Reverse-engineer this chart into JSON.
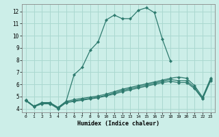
{
  "xlabel": "Humidex (Indice chaleur)",
  "bg_color": "#cceee8",
  "grid_color": "#aad8d0",
  "line_color": "#2d7a6e",
  "xlim": [
    -0.5,
    23.5
  ],
  "ylim": [
    3.7,
    12.6
  ],
  "xticks": [
    0,
    1,
    2,
    3,
    4,
    5,
    6,
    7,
    8,
    9,
    10,
    11,
    12,
    13,
    14,
    15,
    16,
    17,
    18,
    19,
    20,
    21,
    22,
    23
  ],
  "yticks": [
    4,
    5,
    6,
    7,
    8,
    9,
    10,
    11,
    12
  ],
  "lines": [
    {
      "x": [
        0,
        1,
        2,
        3,
        4,
        5,
        6,
        7,
        8,
        9,
        10,
        11,
        12,
        13,
        14,
        15,
        16,
        17,
        18
      ],
      "y": [
        4.7,
        4.2,
        4.5,
        4.5,
        4.1,
        4.6,
        6.8,
        7.4,
        8.8,
        9.5,
        11.3,
        11.7,
        11.4,
        11.4,
        12.1,
        12.3,
        11.9,
        9.7,
        7.9
      ]
    },
    {
      "x": [
        0,
        1,
        2,
        3,
        4,
        5,
        6,
        7,
        8,
        9,
        10,
        11,
        12,
        13,
        14,
        15,
        16,
        17,
        18,
        19,
        20,
        21,
        22,
        23
      ],
      "y": [
        4.7,
        4.2,
        4.5,
        4.5,
        4.1,
        4.6,
        4.75,
        4.85,
        4.95,
        5.05,
        5.2,
        5.4,
        5.6,
        5.75,
        5.9,
        6.05,
        6.2,
        6.35,
        6.5,
        6.6,
        6.5,
        5.9,
        4.95,
        6.5
      ]
    },
    {
      "x": [
        0,
        1,
        2,
        3,
        4,
        5,
        6,
        7,
        8,
        9,
        10,
        11,
        12,
        13,
        14,
        15,
        16,
        17,
        18,
        19,
        20,
        21,
        22,
        23
      ],
      "y": [
        4.7,
        4.2,
        4.45,
        4.45,
        4.05,
        4.5,
        4.65,
        4.75,
        4.85,
        4.95,
        5.1,
        5.3,
        5.5,
        5.65,
        5.8,
        5.95,
        6.1,
        6.25,
        6.4,
        6.3,
        6.3,
        5.75,
        4.85,
        6.4
      ]
    },
    {
      "x": [
        0,
        1,
        2,
        3,
        4,
        5,
        6,
        7,
        8,
        9,
        10,
        11,
        12,
        13,
        14,
        15,
        16,
        17,
        18,
        19,
        20,
        21,
        22,
        23
      ],
      "y": [
        4.65,
        4.15,
        4.4,
        4.4,
        4.0,
        4.5,
        4.6,
        4.7,
        4.8,
        4.9,
        5.05,
        5.2,
        5.4,
        5.55,
        5.7,
        5.85,
        6.0,
        6.15,
        6.25,
        6.15,
        6.15,
        5.65,
        4.8,
        6.3
      ]
    }
  ]
}
